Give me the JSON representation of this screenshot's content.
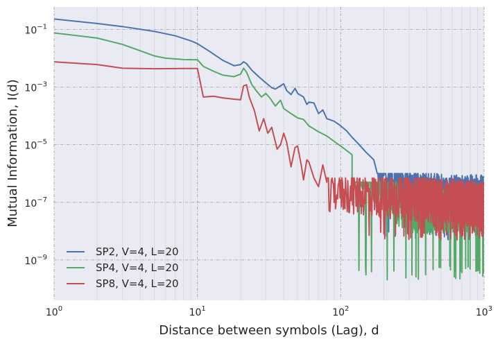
{
  "chart_data": {
    "type": "line",
    "title": "",
    "xlabel": "Distance between symbols (Lag), d",
    "ylabel": "Mutual Information, I(d)",
    "xscale": "log",
    "yscale": "log",
    "xlim": [
      1,
      1000
    ],
    "ylim": [
      4e-11,
      0.6
    ],
    "grid": true,
    "legend_position": "lower-left",
    "x_ticks": [
      {
        "base": "10",
        "exp": "0",
        "value": 1
      },
      {
        "base": "10",
        "exp": "1",
        "value": 10
      },
      {
        "base": "10",
        "exp": "2",
        "value": 100
      },
      {
        "base": "10",
        "exp": "3",
        "value": 1000
      }
    ],
    "y_ticks": [
      {
        "base": "10",
        "exp": "−1",
        "value": 0.1
      },
      {
        "base": "10",
        "exp": "−3",
        "value": 0.001
      },
      {
        "base": "10",
        "exp": "−5",
        "value": 1e-05
      },
      {
        "base": "10",
        "exp": "−7",
        "value": 1e-07
      },
      {
        "base": "10",
        "exp": "−9",
        "value": 1e-09
      }
    ],
    "series": [
      {
        "name": "SP2, V=4, L=20",
        "color": "#4c72b0",
        "points": [
          [
            1,
            0.23
          ],
          [
            2,
            0.16
          ],
          [
            3,
            0.125
          ],
          [
            5,
            0.085
          ],
          [
            7,
            0.06
          ],
          [
            9,
            0.04
          ],
          [
            10,
            0.032
          ],
          [
            12,
            0.018
          ],
          [
            15,
            0.0085
          ],
          [
            18,
            0.0055
          ],
          [
            20,
            0.006
          ],
          [
            21,
            0.0075
          ],
          [
            22,
            0.0065
          ],
          [
            24,
            0.0038
          ],
          [
            27,
            0.0022
          ],
          [
            30,
            0.0014
          ],
          [
            33,
            0.00095
          ],
          [
            35,
            0.00085
          ],
          [
            38,
            0.0011
          ],
          [
            40,
            0.0013
          ],
          [
            42,
            0.00075
          ],
          [
            45,
            0.00055
          ],
          [
            48,
            0.0009
          ],
          [
            50,
            0.0006
          ],
          [
            55,
            0.00045
          ],
          [
            58,
            0.00025
          ],
          [
            60,
            0.0003
          ],
          [
            65,
            0.00028
          ],
          [
            70,
            0.00012
          ],
          [
            75,
            0.00016
          ],
          [
            80,
            8e-05
          ],
          [
            90,
            6.5e-05
          ],
          [
            100,
            4.5e-05
          ],
          [
            110,
            3e-05
          ],
          [
            120,
            1.8e-05
          ],
          [
            130,
            1.2e-05
          ],
          [
            150,
            5.5e-06
          ],
          [
            170,
            3e-06
          ],
          [
            200,
            1.3e-06
          ],
          [
            250,
            7e-07
          ],
          [
            300,
            4e-07
          ],
          [
            400,
            2.5e-07
          ],
          [
            500,
            2e-07
          ],
          [
            700,
            1.8e-07
          ],
          [
            1000,
            1.7e-07
          ]
        ],
        "noise": {
          "x_start": 180,
          "y_low": 5e-09,
          "y_high": 1e-06
        }
      },
      {
        "name": "SP4, V=4, L=20",
        "color": "#55a868",
        "points": [
          [
            1,
            0.075
          ],
          [
            2,
            0.05
          ],
          [
            3,
            0.03
          ],
          [
            4,
            0.018
          ],
          [
            5,
            0.012
          ],
          [
            6,
            0.01
          ],
          [
            8,
            0.009
          ],
          [
            10,
            0.0088
          ],
          [
            11,
            0.0052
          ],
          [
            13,
            0.0035
          ],
          [
            15,
            0.0026
          ],
          [
            18,
            0.0023
          ],
          [
            20,
            0.0028
          ],
          [
            21,
            0.0045
          ],
          [
            22,
            0.0033
          ],
          [
            24,
            0.0012
          ],
          [
            26,
            0.0007
          ],
          [
            28,
            0.00045
          ],
          [
            30,
            0.0006
          ],
          [
            32,
            0.00042
          ],
          [
            35,
            0.00022
          ],
          [
            38,
            0.00035
          ],
          [
            40,
            0.00018
          ],
          [
            45,
            0.00012
          ],
          [
            50,
            8.5e-05
          ],
          [
            55,
            7.5e-05
          ],
          [
            60,
            4.5e-05
          ],
          [
            70,
            2.8e-05
          ],
          [
            80,
            2e-05
          ],
          [
            90,
            1.3e-05
          ],
          [
            100,
            9e-06
          ],
          [
            120,
            4.5e-06
          ],
          [
            140,
            2.2e-06
          ],
          [
            160,
            1.1e-06
          ],
          [
            180,
            6e-07
          ],
          [
            200,
            3e-07
          ],
          [
            250,
            1.2e-07
          ],
          [
            300,
            7e-08
          ],
          [
            400,
            6e-08
          ],
          [
            500,
            6e-08
          ],
          [
            700,
            7e-08
          ],
          [
            1000,
            7e-08
          ]
        ],
        "noise": {
          "x_start": 120,
          "y_low": 2e-10,
          "y_high": 5e-07
        }
      },
      {
        "name": "SP8, V=4, L=20",
        "color": "#c44e52",
        "points": [
          [
            1,
            0.0075
          ],
          [
            2,
            0.006
          ],
          [
            3,
            0.0045
          ],
          [
            5,
            0.0043
          ],
          [
            8,
            0.0044
          ],
          [
            10,
            0.0044
          ],
          [
            11,
            0.00045
          ],
          [
            13,
            0.00048
          ],
          [
            15,
            0.00042
          ],
          [
            18,
            0.00038
          ],
          [
            20,
            0.00036
          ],
          [
            21,
            0.0011
          ],
          [
            22,
            0.0012
          ],
          [
            23,
            0.00045
          ],
          [
            25,
            0.00015
          ],
          [
            27,
            3e-05
          ],
          [
            29,
            8e-05
          ],
          [
            31,
            2.5e-05
          ],
          [
            33,
            4e-05
          ],
          [
            36,
            7e-06
          ],
          [
            38,
            1e-05
          ],
          [
            40,
            2.5e-05
          ],
          [
            42,
            1.2e-05
          ],
          [
            45,
            1.7e-06
          ],
          [
            48,
            8e-06
          ],
          [
            50,
            9e-06
          ],
          [
            53,
            2e-06
          ],
          [
            55,
            6e-07
          ],
          [
            58,
            3e-06
          ],
          [
            60,
            2.5e-06
          ],
          [
            65,
            7e-07
          ],
          [
            70,
            3.5e-07
          ],
          [
            75,
            2e-06
          ],
          [
            80,
            5e-07
          ],
          [
            85,
            1.2e-07
          ],
          [
            90,
            4e-07
          ],
          [
            100,
            3e-07
          ],
          [
            1000,
            1e-07
          ]
        ],
        "noise": {
          "x_start": 80,
          "y_low": 5e-09,
          "y_high": 7e-07
        }
      }
    ]
  }
}
